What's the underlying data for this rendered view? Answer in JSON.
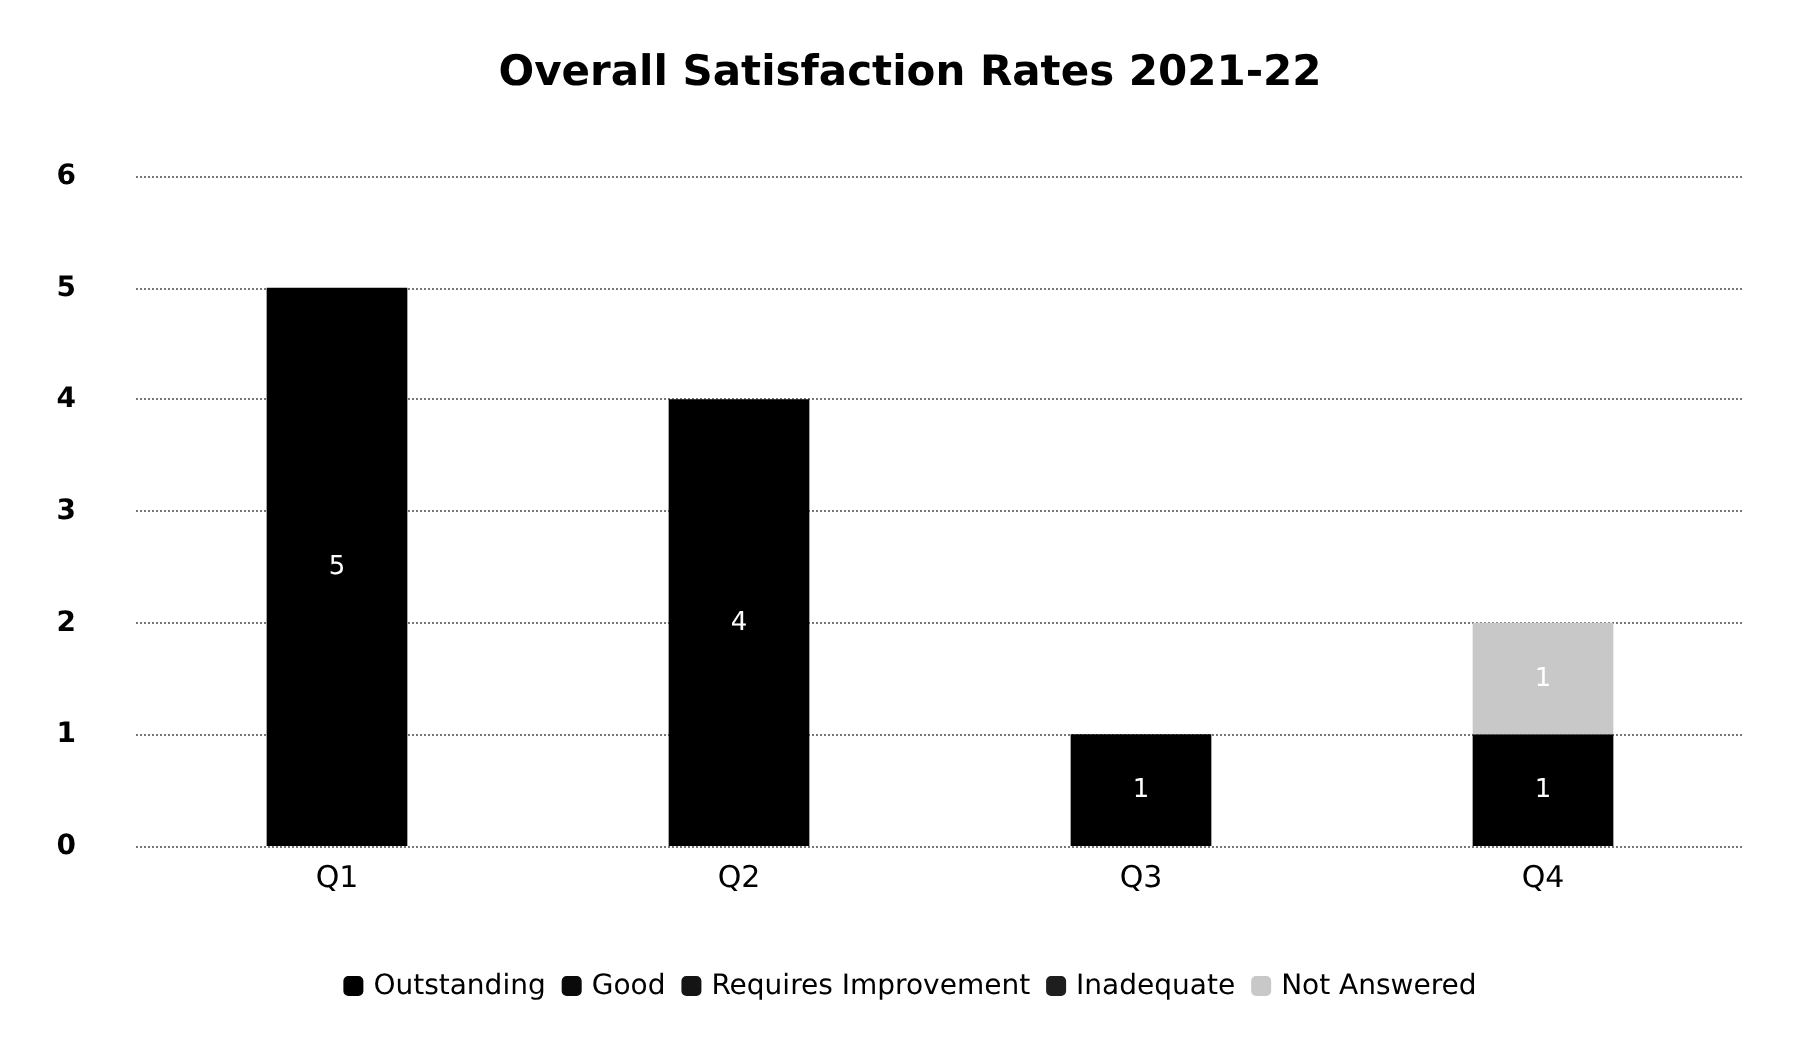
{
  "chart_data": {
    "type": "bar",
    "title": "Overall Satisfaction Rates 2021-22",
    "categories": [
      "Q1",
      "Q2",
      "Q3",
      "Q4"
    ],
    "stacked": true,
    "series": [
      {
        "name": "Outstanding",
        "color": "#000000",
        "values": [
          5,
          4,
          1,
          1
        ],
        "value_labels": [
          "5",
          "4",
          "1",
          "1"
        ]
      },
      {
        "name": "Good",
        "color": "#0a0a0a",
        "values": [
          null,
          null,
          null,
          null
        ]
      },
      {
        "name": "Requires Improvement",
        "color": "#141414",
        "values": [
          null,
          null,
          null,
          null
        ]
      },
      {
        "name": "Inadequate",
        "color": "#1e1e1e",
        "values": [
          null,
          null,
          null,
          null
        ]
      },
      {
        "name": "Not Answered",
        "color": "#c8c8c8",
        "values": [
          null,
          null,
          null,
          1
        ],
        "value_labels": [
          null,
          null,
          null,
          "1"
        ]
      }
    ],
    "ylim": [
      0,
      6
    ],
    "yticks": [
      0,
      1,
      2,
      3,
      4,
      5,
      6
    ],
    "grid": "y",
    "legend": "bottom"
  }
}
